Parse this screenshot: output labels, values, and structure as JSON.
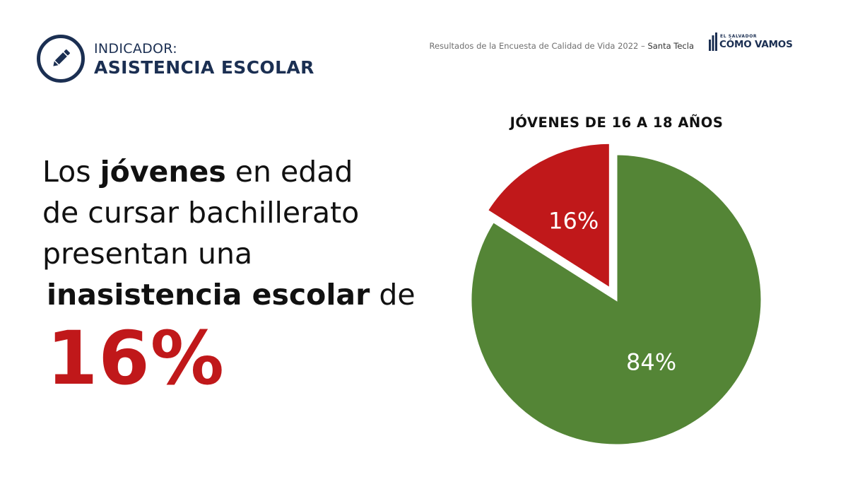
{
  "header": {
    "indicator_label": "INDICADOR:",
    "indicator_title": "ASISTENCIA ESCOLAR",
    "icon": "pencil-icon",
    "source_text": "Resultados de la Encuesta de Calidad de Vida 2022",
    "source_separator": " – ",
    "source_place": "Santa Tecla",
    "logo_small": "EL SALVADOR",
    "logo_big": "CÓMO VAMOS"
  },
  "statement": {
    "line1_prefix": "Los ",
    "line1_bold": "jóvenes",
    "line1_suffix": " en edad",
    "line2": "de cursar bachillerato",
    "line3": "presentan una",
    "line4_bold": "inasistencia escolar",
    "line4_suffix": " de",
    "highlight_value": "16%"
  },
  "colors": {
    "navy": "#1b2f52",
    "red": "#c0181a",
    "green": "#548536"
  },
  "chart_data": {
    "type": "pie",
    "title": "JÓVENES DE 16 A 18 AÑOS",
    "slices": [
      {
        "label": "16%",
        "value": 16,
        "color": "#c0181a",
        "exploded": true
      },
      {
        "label": "84%",
        "value": 84,
        "color": "#548536",
        "exploded": false
      }
    ]
  }
}
